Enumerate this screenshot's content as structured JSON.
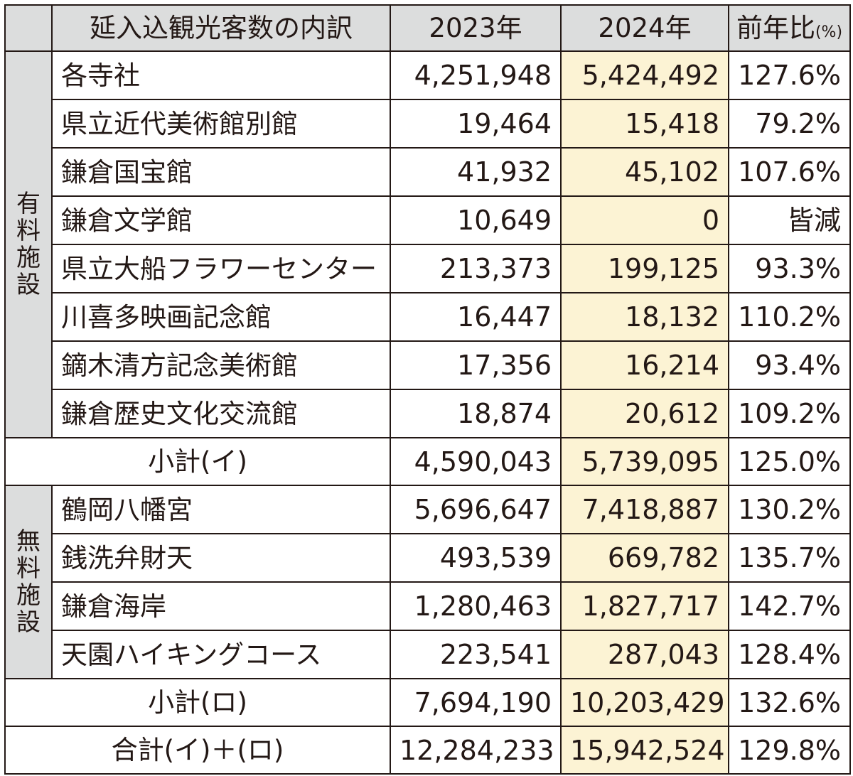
{
  "header": {
    "category": "延入込観光客数の内訳",
    "y2023": "2023年",
    "y2024": "2024年",
    "ratio": "前年比",
    "ratio_unit": "(%)"
  },
  "paid": {
    "label": "有料施設",
    "rows": [
      {
        "name": "各寺社",
        "v2023": "4,251,948",
        "v2024": "5,424,492",
        "ratio": "127.6%"
      },
      {
        "name": "県立近代美術館別館",
        "v2023": "19,464",
        "v2024": "15,418",
        "ratio": "79.2%"
      },
      {
        "name": "鎌倉国宝館",
        "v2023": "41,932",
        "v2024": "45,102",
        "ratio": "107.6%"
      },
      {
        "name": "鎌倉文学館",
        "v2023": "10,649",
        "v2024": "0",
        "ratio": "皆減"
      },
      {
        "name": "県立大船フラワーセンター",
        "v2023": "213,373",
        "v2024": "199,125",
        "ratio": "93.3%"
      },
      {
        "name": "川喜多映画記念館",
        "v2023": "16,447",
        "v2024": "18,132",
        "ratio": "110.2%"
      },
      {
        "name": "鏑木清方記念美術館",
        "v2023": "17,356",
        "v2024": "16,214",
        "ratio": "93.4%"
      },
      {
        "name": "鎌倉歴史文化交流館",
        "v2023": "18,874",
        "v2024": "20,612",
        "ratio": "109.2%"
      }
    ],
    "subtotal": {
      "name": "小計(イ)",
      "v2023": "4,590,043",
      "v2024": "5,739,095",
      "ratio": "125.0%"
    }
  },
  "free": {
    "label": "無料施設",
    "rows": [
      {
        "name": "鶴岡八幡宮",
        "v2023": "5,696,647",
        "v2024": "7,418,887",
        "ratio": "130.2%"
      },
      {
        "name": "銭洗弁財天",
        "v2023": "493,539",
        "v2024": "669,782",
        "ratio": "135.7%"
      },
      {
        "name": "鎌倉海岸",
        "v2023": "1,280,463",
        "v2024": "1,827,717",
        "ratio": "142.7%"
      },
      {
        "name": "天園ハイキングコース",
        "v2023": "223,541",
        "v2024": "287,043",
        "ratio": "128.4%"
      }
    ],
    "subtotal": {
      "name": "小計(ロ)",
      "v2023": "7,694,190",
      "v2024": "10,203,429",
      "ratio": "132.6%"
    }
  },
  "total": {
    "name": "合計(イ)＋(ロ)",
    "v2023": "12,284,233",
    "v2024": "15,942,524",
    "ratio": "129.8%"
  },
  "colors": {
    "header_bg": "#dcdddd",
    "highlight_2024": "#fcf3d4",
    "border": "#231815"
  }
}
